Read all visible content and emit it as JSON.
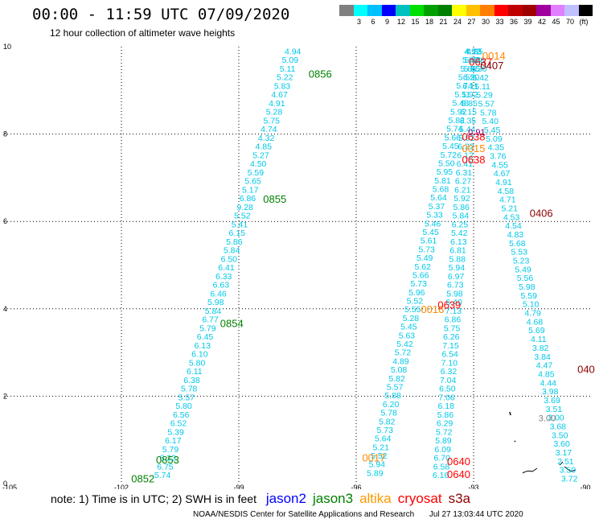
{
  "header": {
    "title": "00:00 - 11:59 UTC 07/09/2020",
    "subtitle": "12 hour collection of altimeter wave heights"
  },
  "colorbar": {
    "colors": [
      "#808080",
      "#00ffff",
      "#00c0ff",
      "#0000ff",
      "#00c0c0",
      "#00e000",
      "#00a000",
      "#008000",
      "#ffff00",
      "#ffc000",
      "#ff8000",
      "#ff0000",
      "#c00000",
      "#a00000",
      "#a000a0",
      "#e080ff",
      "#c0c0ff",
      "#000000"
    ],
    "ticks": [
      "3",
      "6",
      "9",
      "12",
      "15",
      "18",
      "21",
      "24",
      "27",
      "30",
      "33",
      "36",
      "39",
      "42",
      "45",
      "70"
    ],
    "unit": "(ft)"
  },
  "chart_data": {
    "type": "scatter",
    "xlim": [
      -105,
      -90
    ],
    "ylim": [
      0,
      10
    ],
    "x_ticks": [
      "-105",
      "-102",
      "-99",
      "-96",
      "-93",
      "-90"
    ],
    "y_ticks": [
      "0",
      "2",
      "4",
      "6",
      "8",
      "10"
    ],
    "tracks": [
      {
        "name": "track-0852-0856",
        "satellite": "jason3",
        "color": "#00c8e8",
        "start": [
          -100.95,
          0.2
        ],
        "end": [
          -97.62,
          9.9
        ],
        "values": [
          "5.74",
          "6.75",
          "6.23",
          "5.79",
          "6.17",
          "5.39",
          "6.52",
          "6.56",
          "5.80",
          "5.57",
          "5.78",
          "6.38",
          "6.11",
          "5.80",
          "6.10",
          "6.13",
          "6.45",
          "5.79",
          "6.77",
          "5.84",
          "5.98",
          "6.46",
          "6.63",
          "6.33",
          "6.41",
          "6.50",
          "5.84",
          "5.86",
          "6.15",
          "5.41",
          "5.52",
          "9.28",
          "6.86",
          "5.17",
          "5.65",
          "5.59",
          "4.50",
          "5.27",
          "4.85",
          "4.32",
          "4.74",
          "5.75",
          "5.28",
          "4.91",
          "4.67",
          "5.83",
          "5.22",
          "5.11",
          "5.09",
          "4.94"
        ]
      },
      {
        "name": "track-0635-0640",
        "satellite": "cryosat",
        "color": "#00c8e8",
        "start": [
          -93.84,
          0.2
        ],
        "end": [
          -93.01,
          9.9
        ],
        "values": [
          "6.16",
          "6.58",
          "6.70",
          "6.09",
          "5.89",
          "5.72",
          "6.29",
          "5.86",
          "6.18",
          "7.06",
          "6.50",
          "7.04",
          "6.32",
          "7.10",
          "6.54",
          "7.15",
          "6.26",
          "5.75",
          "6.86",
          "7.13",
          "6.40",
          "5.98",
          "6.73",
          "6.97",
          "5.94",
          "5.88",
          "6.81",
          "6.13",
          "5.42",
          "6.25",
          "5.84",
          "5.86",
          "5.92",
          "6.21",
          "6.27",
          "6.31",
          "6.41",
          "6.12",
          "6.22",
          "5.92",
          "5.44",
          "6.35",
          "6.15",
          "5.85",
          "5.92",
          "6.11",
          "6.20",
          "5.85",
          "5.43",
          "4.73"
        ]
      },
      {
        "name": "track-0014-0019",
        "satellite": "altika",
        "color": "#00c8e8",
        "start": [
          -95.52,
          0.25
        ],
        "end": [
          -93.03,
          9.9
        ],
        "values": [
          "5.89",
          "5.94",
          "5.52",
          "5.21",
          "5.64",
          "5.73",
          "5.82",
          "5.78",
          "6.20",
          "5.88",
          "5.57",
          "5.82",
          "5.08",
          "4.89",
          "5.72",
          "5.42",
          "5.63",
          "5.45",
          "5.28",
          "5.55",
          "5.52",
          "5.96",
          "5.73",
          "5.66",
          "5.62",
          "5.49",
          "5.73",
          "5.61",
          "5.45",
          "5.46",
          "5.33",
          "5.37",
          "5.64",
          "5.68",
          "5.81",
          "5.95",
          "5.50",
          "5.72",
          "5.45",
          "5.66",
          "5.74",
          "5.82",
          "5.92",
          "5.48",
          "5.11",
          "5.74",
          "5.55",
          "5.66",
          "5.45",
          "4.92"
        ]
      },
      {
        "name": "track-0405-0407",
        "satellite": "s3a",
        "color": "#00c8e8",
        "start": [
          -90.55,
          0.12
        ],
        "end": [
          -92.97,
          9.9
        ],
        "values": [
          "3.72",
          "3.50",
          "2.51",
          "3.17",
          "3.60",
          "3.50",
          "3.68",
          "3.00",
          "3.51",
          "3.69",
          "3.98",
          "4.44",
          "4.85",
          "4.47",
          "3.84",
          "3.82",
          "4.11",
          "5.69",
          "4.68",
          "4.79",
          "5.10",
          "5.59",
          "5.98",
          "5.56",
          "5.49",
          "5.23",
          "5.53",
          "5.68",
          "4.83",
          "4.54",
          "4.53",
          "5.21",
          "4.71",
          "4.58",
          "4.91",
          "4.67",
          "4.55",
          "3.76",
          "4.35",
          "5.09",
          "5.45",
          "5.40",
          "5.78",
          "5.57",
          "5.29",
          "5.11",
          "5.42",
          "5.30",
          "5.08",
          "4.35"
        ]
      }
    ],
    "time_labels": [
      {
        "text": "0852",
        "x": -101.45,
        "y": 0.12,
        "color": "#008000"
      },
      {
        "text": "0853",
        "x": -100.82,
        "y": 0.55,
        "color": "#008000"
      },
      {
        "text": "0854",
        "x": -99.18,
        "y": 3.67,
        "color": "#008000"
      },
      {
        "text": "0855",
        "x": -98.08,
        "y": 6.52,
        "color": "#008000"
      },
      {
        "text": "0856",
        "x": -96.92,
        "y": 9.38,
        "color": "#008000"
      },
      {
        "text": "0017",
        "x": -95.55,
        "y": 0.6,
        "color": "#ff8800"
      },
      {
        "text": "0016",
        "x": -94.05,
        "y": 4.0,
        "color": "#ff8800"
      },
      {
        "text": "0015",
        "x": -93.0,
        "y": 7.68,
        "color": "#ff8800"
      },
      {
        "text": "0014",
        "x": -92.48,
        "y": 9.8,
        "color": "#ff8800"
      },
      {
        "text": "0640",
        "x": -93.38,
        "y": 0.22,
        "color": "#ff0000"
      },
      {
        "text": "0640",
        "x": -93.38,
        "y": 0.52,
        "color": "#ff0000"
      },
      {
        "text": "0639",
        "x": -93.62,
        "y": 4.1,
        "color": "#ff0000"
      },
      {
        "text": "0638",
        "x": -93.0,
        "y": 7.42,
        "color": "#ff0000"
      },
      {
        "text": "0638",
        "x": -93.0,
        "y": 7.95,
        "color": "#ff0000"
      },
      {
        "text": "0637",
        "x": -92.82,
        "y": 9.66,
        "color": "#ff0000"
      },
      {
        "text": "0405",
        "x": -90.05,
        "y": 2.62,
        "color": "#8b0000"
      },
      {
        "text": "0406",
        "x": -91.27,
        "y": 6.2,
        "color": "#8b0000"
      },
      {
        "text": "0407",
        "x": -92.53,
        "y": 9.58,
        "color": "#8b0000"
      }
    ],
    "special_labels": [
      {
        "text": "0.91",
        "x": -92.92,
        "y": 8.05,
        "color": "#800080"
      },
      {
        "text": "3.00",
        "x": -91.12,
        "y": 1.5,
        "color": "#808080"
      },
      {
        "text": "04",
        "x": -89.25,
        "y": 0.1,
        "color": "#ff0000"
      }
    ],
    "grid": true
  },
  "legend": {
    "note": "note: 1) Time is in UTC; 2) SWH is in feet",
    "satellites": [
      {
        "name": "jason2",
        "color": "#0000ff"
      },
      {
        "name": "jason3",
        "color": "#008000"
      },
      {
        "name": "altika",
        "color": "#ff9900"
      },
      {
        "name": "cryosat",
        "color": "#ff0000"
      },
      {
        "name": "s3a",
        "color": "#8b0000"
      }
    ]
  },
  "footer": {
    "credit": "NOAA/NESDIS Center for Satellite Applications and Research",
    "timestamp": "Jul 27 13:03:44 UTC 2020"
  }
}
